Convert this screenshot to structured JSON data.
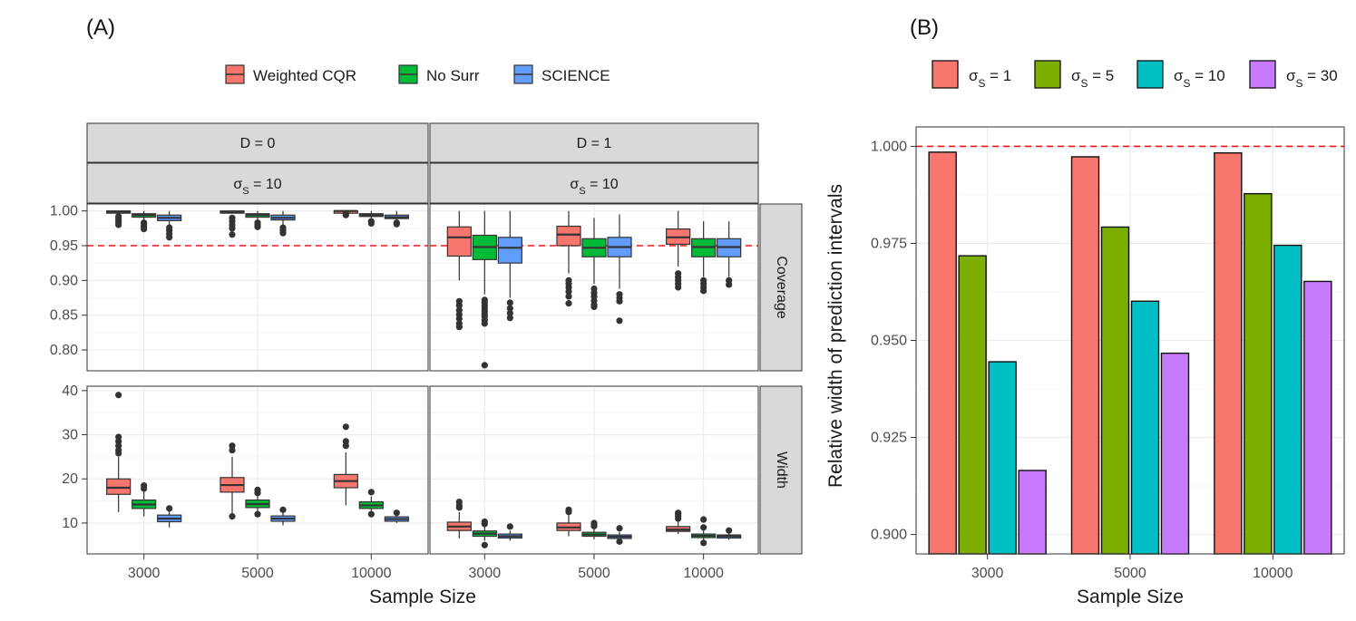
{
  "labels": {
    "panel_a": "(A)",
    "panel_b": "(B)"
  },
  "chart_data": [
    {
      "type": "boxplot",
      "id": "A",
      "xlabel": "Sample Size",
      "categories": [
        "3000",
        "5000",
        "10000"
      ],
      "legend": {
        "position": "top",
        "entries": [
          {
            "name": "Weighted CQR",
            "color": "#F8766D"
          },
          {
            "name": "No Surr",
            "color": "#00BA38"
          },
          {
            "name": "SCIENCE",
            "color": "#619CFF"
          }
        ]
      },
      "col_strips": [
        "D = 0",
        "D = 1"
      ],
      "sigma_strip": {
        "sym": "σ",
        "sub": "S",
        "rhs": " = 10"
      },
      "row_strips": [
        "Coverage",
        "Width"
      ],
      "reference_line": {
        "row": "Coverage",
        "y": 0.95,
        "color": "#e41a1c"
      },
      "rows": [
        {
          "name": "Coverage",
          "ylim": [
            0.77,
            1.01
          ],
          "ticks": [
            "0.80",
            "0.85",
            "0.90",
            "0.95",
            "1.00"
          ],
          "tick_values": [
            0.8,
            0.85,
            0.9,
            0.95,
            1.0
          ],
          "panels": [
            {
              "D": "0",
              "groups": [
                [
                  {
                    "lw": 0.998,
                    "q1": 0.998,
                    "med": 0.999,
                    "q3": 1.0,
                    "uw": 1.0,
                    "outliers": [
                      0.992,
                      0.989,
                      0.986,
                      0.983,
                      0.98
                    ]
                  },
                  {
                    "lw": 0.985,
                    "q1": 0.991,
                    "med": 0.994,
                    "q3": 0.996,
                    "uw": 1.0,
                    "outliers": [
                      0.983,
                      0.98,
                      0.977,
                      0.974
                    ]
                  },
                  {
                    "lw": 0.979,
                    "q1": 0.986,
                    "med": 0.99,
                    "q3": 0.994,
                    "uw": 1.0,
                    "outliers": [
                      0.976,
                      0.972,
                      0.967,
                      0.962
                    ]
                  }
                ],
                [
                  {
                    "lw": 0.997,
                    "q1": 0.998,
                    "med": 0.999,
                    "q3": 1.0,
                    "uw": 1.0,
                    "outliers": [
                      0.99,
                      0.985,
                      0.98,
                      0.975,
                      0.966
                    ]
                  },
                  {
                    "lw": 0.986,
                    "q1": 0.991,
                    "med": 0.994,
                    "q3": 0.996,
                    "uw": 1.0,
                    "outliers": [
                      0.983,
                      0.98,
                      0.977
                    ]
                  },
                  {
                    "lw": 0.979,
                    "q1": 0.987,
                    "med": 0.99,
                    "q3": 0.994,
                    "uw": 1.0,
                    "outliers": [
                      0.976,
                      0.972,
                      0.968
                    ]
                  }
                ],
                [
                  {
                    "lw": 0.999,
                    "q1": 0.999,
                    "med": 1.0,
                    "q3": 1.0,
                    "uw": 1.0,
                    "outliers": [
                      0.996,
                      0.994
                    ]
                  },
                  {
                    "lw": 0.988,
                    "q1": 0.992,
                    "med": 0.994,
                    "q3": 0.996,
                    "uw": 1.0,
                    "outliers": [
                      0.985,
                      0.982
                    ]
                  },
                  {
                    "lw": 0.985,
                    "q1": 0.989,
                    "med": 0.991,
                    "q3": 0.994,
                    "uw": 1.0,
                    "outliers": [
                      0.983,
                      0.981
                    ]
                  }
                ]
              ]
            },
            {
              "D": "1",
              "groups": [
                [
                  {
                    "lw": 0.9,
                    "q1": 0.935,
                    "med": 0.962,
                    "q3": 0.977,
                    "uw": 1.0,
                    "outliers": [
                      0.87,
                      0.864,
                      0.857,
                      0.851,
                      0.845,
                      0.838,
                      0.833
                    ]
                  },
                  {
                    "lw": 0.88,
                    "q1": 0.93,
                    "med": 0.948,
                    "q3": 0.965,
                    "uw": 1.0,
                    "outliers": [
                      0.872,
                      0.868,
                      0.864,
                      0.86,
                      0.856,
                      0.852,
                      0.848,
                      0.843,
                      0.838,
                      0.778
                    ]
                  },
                  {
                    "lw": 0.875,
                    "q1": 0.925,
                    "med": 0.947,
                    "q3": 0.962,
                    "uw": 1.0,
                    "outliers": [
                      0.868,
                      0.86,
                      0.853,
                      0.846
                    ]
                  }
                ],
                [
                  {
                    "lw": 0.91,
                    "q1": 0.95,
                    "med": 0.966,
                    "q3": 0.978,
                    "uw": 1.0,
                    "outliers": [
                      0.9,
                      0.895,
                      0.89,
                      0.884,
                      0.877,
                      0.867
                    ]
                  },
                  {
                    "lw": 0.895,
                    "q1": 0.934,
                    "med": 0.947,
                    "q3": 0.96,
                    "uw": 0.99,
                    "outliers": [
                      0.888,
                      0.882,
                      0.877,
                      0.871,
                      0.865,
                      0.862
                    ]
                  },
                  {
                    "lw": 0.888,
                    "q1": 0.934,
                    "med": 0.948,
                    "q3": 0.962,
                    "uw": 0.995,
                    "outliers": [
                      0.88,
                      0.875,
                      0.87,
                      0.842
                    ]
                  }
                ],
                [
                  {
                    "lw": 0.92,
                    "q1": 0.952,
                    "med": 0.962,
                    "q3": 0.974,
                    "uw": 1.0,
                    "outliers": [
                      0.91,
                      0.905,
                      0.9,
                      0.895,
                      0.89
                    ]
                  },
                  {
                    "lw": 0.905,
                    "q1": 0.934,
                    "med": 0.948,
                    "q3": 0.96,
                    "uw": 0.985,
                    "outliers": [
                      0.9,
                      0.895,
                      0.89,
                      0.885
                    ]
                  },
                  {
                    "lw": 0.905,
                    "q1": 0.934,
                    "med": 0.948,
                    "q3": 0.96,
                    "uw": 0.985,
                    "outliers": [
                      0.9,
                      0.894
                    ]
                  }
                ]
              ]
            }
          ]
        },
        {
          "name": "Width",
          "ylim": [
            3,
            41
          ],
          "ticks": [
            "10",
            "20",
            "30",
            "40"
          ],
          "tick_values": [
            10,
            20,
            30,
            40
          ],
          "panels": [
            {
              "D": "0",
              "groups": [
                [
                  {
                    "lw": 12.5,
                    "q1": 16.5,
                    "med": 18.0,
                    "q3": 20.0,
                    "uw": 25.0,
                    "outliers": [
                      29.5,
                      28.5,
                      27.5,
                      26.5,
                      25.8,
                      39.0
                    ]
                  },
                  {
                    "lw": 11.5,
                    "q1": 13.3,
                    "med": 14.2,
                    "q3": 15.2,
                    "uw": 17.5,
                    "outliers": [
                      18.5,
                      17.8
                    ]
                  },
                  {
                    "lw": 9.0,
                    "q1": 10.3,
                    "med": 11.0,
                    "q3": 11.8,
                    "uw": 13.0,
                    "outliers": [
                      13.3
                    ]
                  }
                ],
                [
                  {
                    "lw": 11.5,
                    "q1": 17.0,
                    "med": 18.6,
                    "q3": 20.3,
                    "uw": 25.0,
                    "outliers": [
                      27.5,
                      26.5,
                      11.5
                    ]
                  },
                  {
                    "lw": 12.0,
                    "q1": 13.5,
                    "med": 14.3,
                    "q3": 15.2,
                    "uw": 16.5,
                    "outliers": [
                      17.5,
                      16.8,
                      12.0
                    ]
                  },
                  {
                    "lw": 9.5,
                    "q1": 10.4,
                    "med": 11.0,
                    "q3": 11.6,
                    "uw": 12.5,
                    "outliers": [
                      13.0
                    ]
                  }
                ],
                [
                  {
                    "lw": 14.0,
                    "q1": 18.0,
                    "med": 19.5,
                    "q3": 21.0,
                    "uw": 26.0,
                    "outliers": [
                      31.8,
                      28.5,
                      27.5
                    ]
                  },
                  {
                    "lw": 12.5,
                    "q1": 13.3,
                    "med": 14.0,
                    "q3": 14.8,
                    "uw": 16.0,
                    "outliers": [
                      17.0,
                      12.0
                    ]
                  },
                  {
                    "lw": 10.0,
                    "q1": 10.4,
                    "med": 10.9,
                    "q3": 11.4,
                    "uw": 12.0,
                    "outliers": [
                      12.3
                    ]
                  }
                ]
              ]
            },
            {
              "D": "1",
              "groups": [
                [
                  {
                    "lw": 6.5,
                    "q1": 8.3,
                    "med": 9.2,
                    "q3": 10.2,
                    "uw": 12.5,
                    "outliers": [
                      13.5,
                      14.0,
                      14.8
                    ]
                  },
                  {
                    "lw": 6.0,
                    "q1": 7.0,
                    "med": 7.6,
                    "q3": 8.2,
                    "uw": 9.2,
                    "outliers": [
                      9.8,
                      10.3,
                      5.0
                    ]
                  },
                  {
                    "lw": 6.0,
                    "q1": 6.6,
                    "med": 7.0,
                    "q3": 7.5,
                    "uw": 8.3,
                    "outliers": [
                      9.2
                    ]
                  }
                ],
                [
                  {
                    "lw": 7.0,
                    "q1": 8.3,
                    "med": 9.0,
                    "q3": 10.0,
                    "uw": 11.8,
                    "outliers": [
                      12.5,
                      13.0
                    ]
                  },
                  {
                    "lw": 6.3,
                    "q1": 7.0,
                    "med": 7.4,
                    "q3": 7.9,
                    "uw": 8.8,
                    "outliers": [
                      9.3,
                      9.8,
                      10.0
                    ]
                  },
                  {
                    "lw": 6.0,
                    "q1": 6.5,
                    "med": 6.9,
                    "q3": 7.3,
                    "uw": 8.0,
                    "outliers": [
                      8.8,
                      5.8
                    ]
                  }
                ],
                [
                  {
                    "lw": 7.5,
                    "q1": 8.1,
                    "med": 8.5,
                    "q3": 9.2,
                    "uw": 10.5,
                    "outliers": [
                      11.0,
                      11.5,
                      12.0,
                      12.3
                    ]
                  },
                  {
                    "lw": 6.2,
                    "q1": 6.7,
                    "med": 7.1,
                    "q3": 7.5,
                    "uw": 8.3,
                    "outliers": [
                      9.0,
                      10.8,
                      5.5
                    ]
                  },
                  {
                    "lw": 6.2,
                    "q1": 6.6,
                    "med": 7.0,
                    "q3": 7.3,
                    "uw": 7.8,
                    "outliers": [
                      8.3
                    ]
                  }
                ]
              ]
            }
          ]
        }
      ]
    },
    {
      "type": "bar",
      "id": "B",
      "xlabel": "Sample Size",
      "ylabel": "Relative width of prediction intervals",
      "categories": [
        "3000",
        "5000",
        "10000"
      ],
      "ylim": [
        0.895,
        1.005
      ],
      "ticks": [
        "0.900",
        "0.925",
        "0.950",
        "0.975",
        "1.000"
      ],
      "tick_values": [
        0.9,
        0.925,
        0.95,
        0.975,
        1.0
      ],
      "reference_line": {
        "y": 1.0,
        "color": "#e41a1c"
      },
      "legend": {
        "position": "top"
      },
      "series": [
        {
          "name": "σS = 1",
          "sym": "σ",
          "sub": "S",
          "rhs": " = 1",
          "color": "#F8766D",
          "values": [
            0.9985,
            0.9973,
            0.9983
          ]
        },
        {
          "name": "σS = 5",
          "sym": "σ",
          "sub": "S",
          "rhs": " = 5",
          "color": "#7CAE00",
          "values": [
            0.9718,
            0.9792,
            0.9878
          ]
        },
        {
          "name": "σS = 10",
          "sym": "σ",
          "sub": "S",
          "rhs": " = 10",
          "color": "#00BFC4",
          "values": [
            0.9445,
            0.9601,
            0.9745
          ]
        },
        {
          "name": "σS = 30",
          "sym": "σ",
          "sub": "S",
          "rhs": " = 30",
          "color": "#C77CFF",
          "values": [
            0.9165,
            0.9467,
            0.9652
          ]
        }
      ]
    }
  ]
}
